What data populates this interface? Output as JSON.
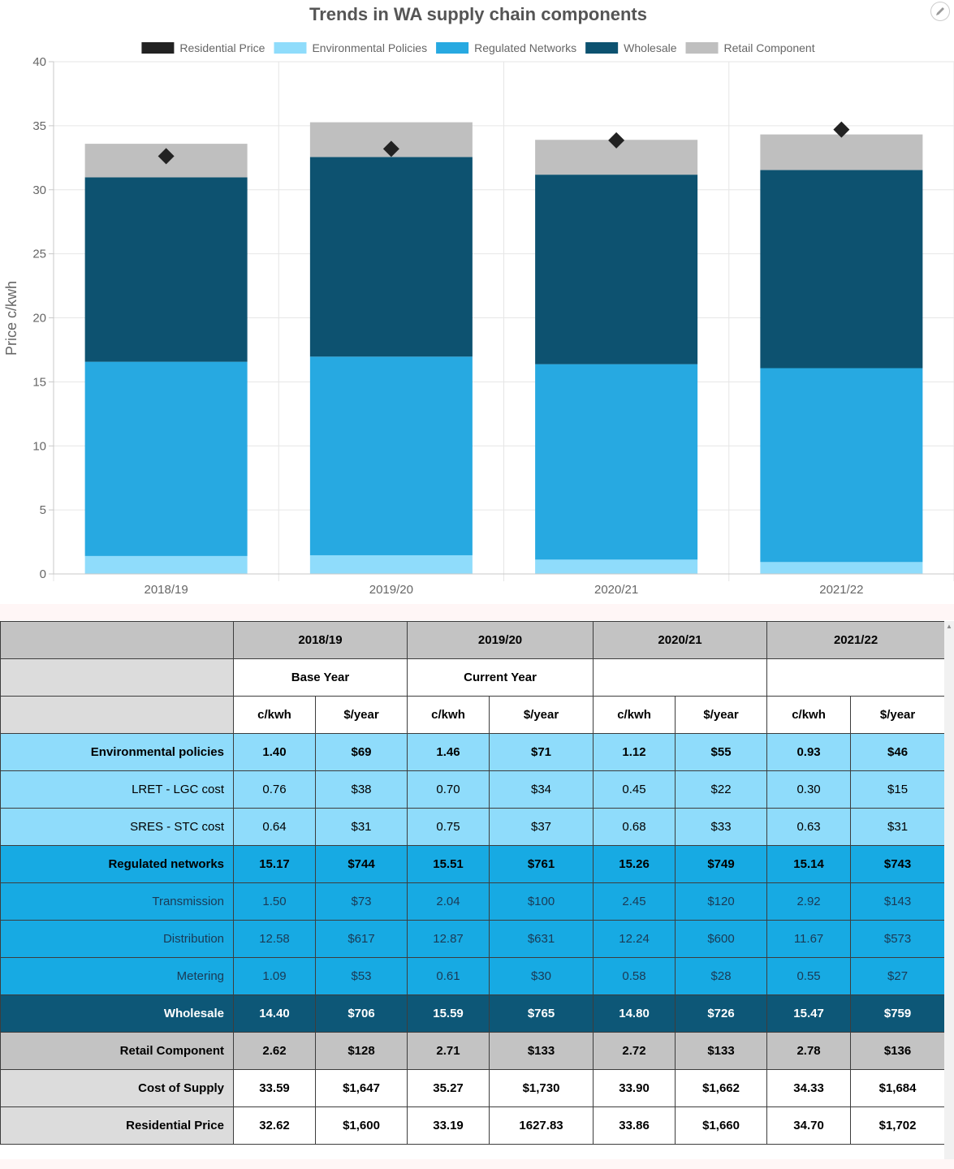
{
  "chart_data": {
    "type": "bar",
    "stacked": true,
    "title": "Trends in WA supply chain components",
    "ylabel": "Price c/kwh",
    "xlabel": "",
    "ylim": [
      0,
      40
    ],
    "yticks": [
      0,
      5,
      10,
      15,
      20,
      25,
      30,
      35,
      40
    ],
    "grid": true,
    "legend_position": "top",
    "categories": [
      "2018/19",
      "2019/20",
      "2020/21",
      "2021/22"
    ],
    "series": [
      {
        "name": "Environmental Policies",
        "color": "#8fdcfb",
        "values": [
          1.4,
          1.46,
          1.12,
          0.93
        ]
      },
      {
        "name": "Regulated Networks",
        "color": "#27a9e1",
        "values": [
          15.17,
          15.51,
          15.26,
          15.14
        ]
      },
      {
        "name": "Wholesale",
        "color": "#0d5270",
        "values": [
          14.4,
          15.59,
          14.8,
          15.47
        ]
      },
      {
        "name": "Retail Component",
        "color": "#bfbfbf",
        "values": [
          2.62,
          2.71,
          2.72,
          2.78
        ]
      }
    ],
    "markers": {
      "name": "Residential Price",
      "color": "#222222",
      "shape": "diamond",
      "values": [
        32.62,
        33.19,
        33.86,
        34.7
      ]
    },
    "legend": [
      "Residential Price",
      "Environmental Policies",
      "Regulated Networks",
      "Wholesale",
      "Retail Component"
    ]
  },
  "edit_icon": "pencil-icon",
  "table": {
    "years": [
      "2018/19",
      "2019/20",
      "2020/21",
      "2021/22"
    ],
    "year_notes": [
      "Base Year",
      "Current Year",
      "",
      ""
    ],
    "units": [
      "c/kwh",
      "$/year"
    ],
    "rows": [
      {
        "label": "Environmental policies",
        "style": "env bold",
        "values": [
          "1.40",
          "$69",
          "1.46",
          "$71",
          "1.12",
          "$55",
          "0.93",
          "$46"
        ]
      },
      {
        "label": "LRET - LGC cost",
        "style": "env",
        "values": [
          "0.76",
          "$38",
          "0.70",
          "$34",
          "0.45",
          "$22",
          "0.30",
          "$15"
        ]
      },
      {
        "label": "SRES - STC cost",
        "style": "env",
        "values": [
          "0.64",
          "$31",
          "0.75",
          "$37",
          "0.68",
          "$33",
          "0.63",
          "$31"
        ]
      },
      {
        "label": "Regulated networks",
        "style": "net bold",
        "values": [
          "15.17",
          "$744",
          "15.51",
          "$761",
          "15.26",
          "$749",
          "15.14",
          "$743"
        ]
      },
      {
        "label": "Transmission",
        "style": "net",
        "values": [
          "1.50",
          "$73",
          "2.04",
          "$100",
          "2.45",
          "$120",
          "2.92",
          "$143"
        ]
      },
      {
        "label": "Distribution",
        "style": "net",
        "values": [
          "12.58",
          "$617",
          "12.87",
          "$631",
          "12.24",
          "$600",
          "11.67",
          "$573"
        ]
      },
      {
        "label": "Metering",
        "style": "net",
        "values": [
          "1.09",
          "$53",
          "0.61",
          "$30",
          "0.58",
          "$28",
          "0.55",
          "$27"
        ]
      },
      {
        "label": "Wholesale",
        "style": "whole",
        "values": [
          "14.40",
          "$706",
          "15.59",
          "$765",
          "14.80",
          "$726",
          "15.47",
          "$759"
        ]
      },
      {
        "label": "Retail Component",
        "style": "retail",
        "values": [
          "2.62",
          "$128",
          "2.71",
          "$133",
          "2.72",
          "$133",
          "2.78",
          "$136"
        ]
      },
      {
        "label": "Cost of Supply",
        "style": "cost",
        "values": [
          "33.59",
          "$1,647",
          "35.27",
          "$1,730",
          "33.90",
          "$1,662",
          "34.33",
          "$1,684"
        ]
      },
      {
        "label": "Residential Price",
        "style": "cost",
        "values": [
          "32.62",
          "$1,600",
          "33.19",
          "1627.83",
          "33.86",
          "$1,660",
          "34.70",
          "$1,702"
        ]
      }
    ]
  }
}
